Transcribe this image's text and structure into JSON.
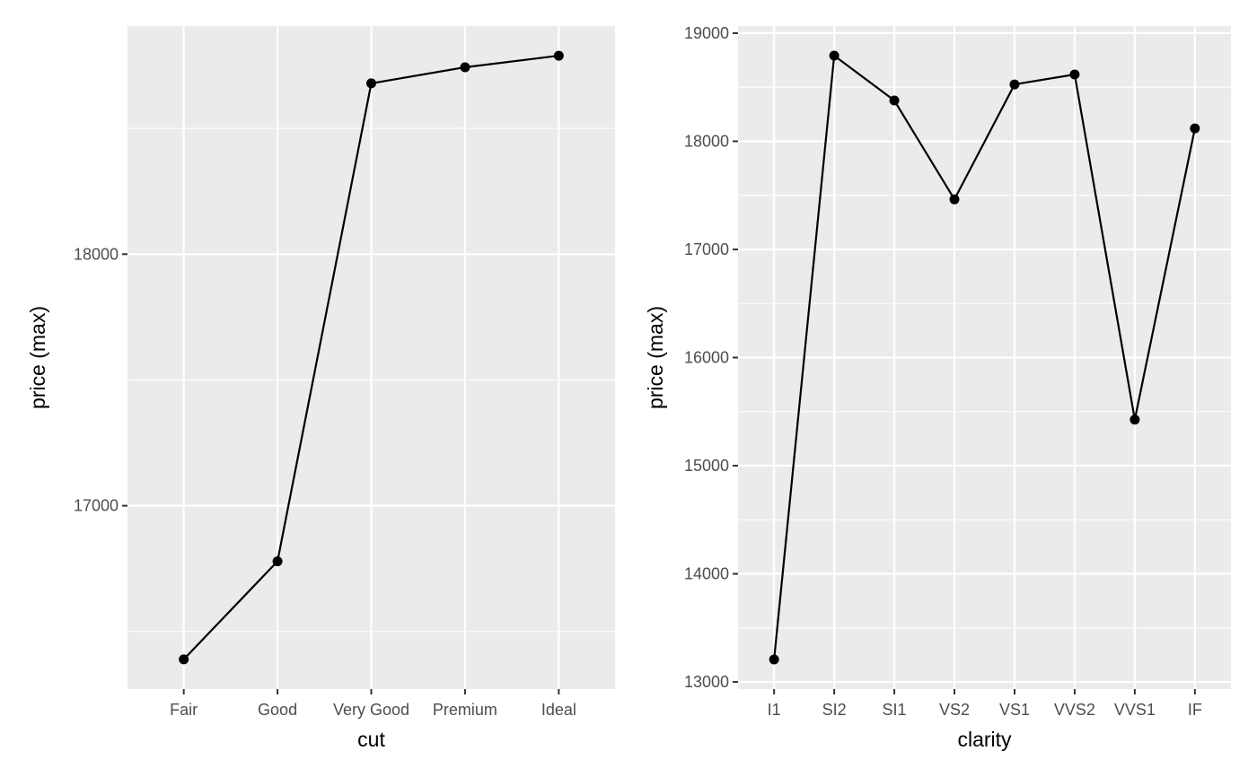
{
  "chart_data": [
    {
      "type": "line",
      "xlabel": "cut",
      "ylabel": "price (max)",
      "categories": [
        "Fair",
        "Good",
        "Very Good",
        "Premium",
        "Ideal"
      ],
      "values": [
        16389,
        16779,
        18679,
        18743,
        18789
      ],
      "ylim": [
        16271,
        18907
      ],
      "yticks": [
        17000,
        18000
      ],
      "grid": true,
      "panel_background": "#EBEBEB",
      "line_color": "#000000"
    },
    {
      "type": "line",
      "xlabel": "clarity",
      "ylabel": "price (max)",
      "categories": [
        "I1",
        "SI2",
        "SI1",
        "VS2",
        "VS1",
        "VVS2",
        "VVS1",
        "IF"
      ],
      "values": [
        13208,
        18792,
        18377,
        17463,
        18526,
        18618,
        15426,
        18119
      ],
      "ylim": [
        12934,
        19066
      ],
      "yticks": [
        13000,
        14000,
        15000,
        16000,
        17000,
        18000,
        19000
      ],
      "grid": true,
      "panel_background": "#EBEBEB",
      "line_color": "#000000"
    }
  ]
}
